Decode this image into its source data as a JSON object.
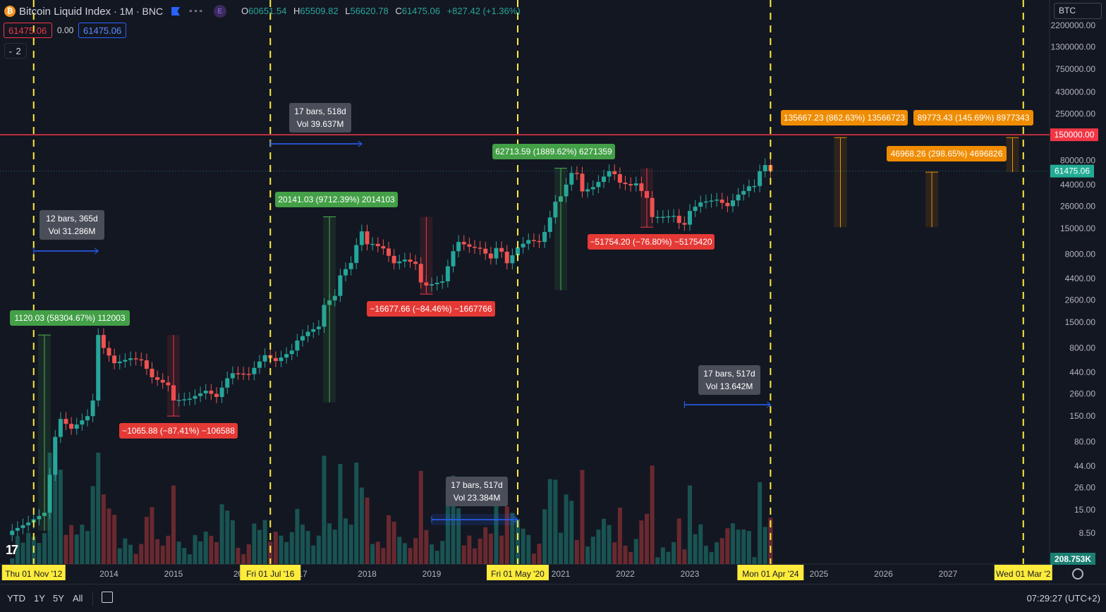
{
  "header": {
    "symbol_title": "Bitcoin Liquid Index",
    "interval_exchange": "· 1M · BNC",
    "more_label": "∘∘∘",
    "badge": "E",
    "ohlc": {
      "o_label": "O",
      "o": "60651.54",
      "h_label": "H",
      "h": "65509.82",
      "l_label": "L",
      "l": "56620.78",
      "c_label": "C",
      "c": "61475.06",
      "change": "+827.42 (+1.36%)"
    },
    "sell_price": "61475.06",
    "spread": "0.00",
    "buy_price": "61475.06",
    "collapse_label": "2"
  },
  "symbol_box": {
    "label": "BTC"
  },
  "colors": {
    "background": "#131722",
    "up": "#26a69a",
    "down": "#ef5350",
    "vline": "#ffeb3b",
    "hline": "#f23645",
    "label_green": "#43a047",
    "label_red": "#e53935",
    "label_orange": "#f08c00",
    "range_blue": "#2962ff"
  },
  "bottom_bar": {
    "ranges": [
      "YTD",
      "1Y",
      "5Y",
      "All"
    ],
    "clock": "07:29:27 (UTC+2)",
    "calendar_icon": "calendar-icon",
    "settings_icon": "gear-icon"
  },
  "chart_data": {
    "type": "candlestick",
    "symbol": "Bitcoin Liquid Index",
    "interval": "1M",
    "y_scale": "log",
    "ylim": [
      6,
      3000000
    ],
    "y_ticks": [
      "2200000.00",
      "1300000.00",
      "750000.00",
      "430000.00",
      "250000.00",
      "80000.00",
      "44000.00",
      "26000.00",
      "15000.00",
      "8000.00",
      "4400.00",
      "2600.00",
      "1500.00",
      "800.00",
      "440.00",
      "260.00",
      "150.00",
      "80.00",
      "44.00",
      "26.00",
      "15.00",
      "8.50"
    ],
    "x_ticks": [
      {
        "label": "2014",
        "x": "2014-01"
      },
      {
        "label": "2015",
        "x": "2015-01"
      },
      {
        "label": "20",
        "x": "2016-01"
      },
      {
        "label": "17",
        "x": "2017-01"
      },
      {
        "label": "2018",
        "x": "2018-01"
      },
      {
        "label": "2019",
        "x": "2019-01"
      },
      {
        "label": "2021",
        "x": "2021-01"
      },
      {
        "label": "2022",
        "x": "2022-01"
      },
      {
        "label": "2023",
        "x": "2023-01"
      },
      {
        "label": "2025",
        "x": "2025-01"
      },
      {
        "label": "2026",
        "x": "2026-01"
      },
      {
        "label": "2027",
        "x": "2027-01"
      }
    ],
    "vertical_markers": [
      {
        "date": "2012-11",
        "label": "Thu 01 Nov '12"
      },
      {
        "date": "2016-07",
        "label": "Fri 01 Jul '16"
      },
      {
        "date": "2020-05",
        "label": "Fri 01 May '20"
      },
      {
        "date": "2024-04",
        "label": "Mon 01 Apr '24"
      },
      {
        "date": "2028-03",
        "label": "Wed 01 Mar '2"
      }
    ],
    "horizontal_line": {
      "value": 150000,
      "label": "150000.00"
    },
    "last_price": {
      "value": 61475.06,
      "label": "61475.06"
    },
    "volume_label": "208.753K",
    "closes": [
      {
        "month": "2012-07",
        "close": 9
      },
      {
        "month": "2012-10",
        "close": 11
      },
      {
        "month": "2013-01",
        "close": 14
      },
      {
        "month": "2013-03",
        "close": 90
      },
      {
        "month": "2013-04",
        "close": 140
      },
      {
        "month": "2013-06",
        "close": 110
      },
      {
        "month": "2013-09",
        "close": 150
      },
      {
        "month": "2013-10",
        "close": 220
      },
      {
        "month": "2013-11",
        "close": 1100
      },
      {
        "month": "2013-12",
        "close": 800
      },
      {
        "month": "2014-02",
        "close": 550
      },
      {
        "month": "2014-05",
        "close": 620
      },
      {
        "month": "2014-07",
        "close": 590
      },
      {
        "month": "2014-09",
        "close": 390
      },
      {
        "month": "2014-12",
        "close": 320
      },
      {
        "month": "2015-01",
        "close": 220
      },
      {
        "month": "2015-04",
        "close": 230
      },
      {
        "month": "2015-07",
        "close": 280
      },
      {
        "month": "2015-09",
        "close": 240
      },
      {
        "month": "2015-11",
        "close": 380
      },
      {
        "month": "2015-12",
        "close": 430
      },
      {
        "month": "2016-03",
        "close": 420
      },
      {
        "month": "2016-06",
        "close": 670
      },
      {
        "month": "2016-08",
        "close": 580
      },
      {
        "month": "2016-11",
        "close": 750
      },
      {
        "month": "2016-12",
        "close": 960
      },
      {
        "month": "2017-02",
        "close": 1190
      },
      {
        "month": "2017-04",
        "close": 1350
      },
      {
        "month": "2017-05",
        "close": 2300
      },
      {
        "month": "2017-07",
        "close": 2870
      },
      {
        "month": "2017-08",
        "close": 4750
      },
      {
        "month": "2017-10",
        "close": 6450
      },
      {
        "month": "2017-11",
        "close": 10000
      },
      {
        "month": "2017-12",
        "close": 14000
      },
      {
        "month": "2018-01",
        "close": 10200
      },
      {
        "month": "2018-02",
        "close": 10300
      },
      {
        "month": "2018-04",
        "close": 9200
      },
      {
        "month": "2018-06",
        "close": 6400
      },
      {
        "month": "2018-08",
        "close": 7000
      },
      {
        "month": "2018-10",
        "close": 6300
      },
      {
        "month": "2018-11",
        "close": 4000
      },
      {
        "month": "2018-12",
        "close": 3700
      },
      {
        "month": "2019-03",
        "close": 4100
      },
      {
        "month": "2019-05",
        "close": 8600
      },
      {
        "month": "2019-06",
        "close": 10800
      },
      {
        "month": "2019-08",
        "close": 9600
      },
      {
        "month": "2019-10",
        "close": 9150
      },
      {
        "month": "2019-12",
        "close": 7200
      },
      {
        "month": "2020-01",
        "close": 9300
      },
      {
        "month": "2020-02",
        "close": 8500
      },
      {
        "month": "2020-03",
        "close": 6400
      },
      {
        "month": "2020-05",
        "close": 9450
      },
      {
        "month": "2020-07",
        "close": 11300
      },
      {
        "month": "2020-09",
        "close": 10800
      },
      {
        "month": "2020-10",
        "close": 13800
      },
      {
        "month": "2020-11",
        "close": 19700
      },
      {
        "month": "2020-12",
        "close": 29000
      },
      {
        "month": "2021-01",
        "close": 33100
      },
      {
        "month": "2021-03",
        "close": 58800
      },
      {
        "month": "2021-04",
        "close": 57700
      },
      {
        "month": "2021-05",
        "close": 37300
      },
      {
        "month": "2021-07",
        "close": 41500
      },
      {
        "month": "2021-08",
        "close": 47100
      },
      {
        "month": "2021-10",
        "close": 61300
      },
      {
        "month": "2021-11",
        "close": 57000
      },
      {
        "month": "2021-12",
        "close": 46300
      },
      {
        "month": "2022-02",
        "close": 43200
      },
      {
        "month": "2022-03",
        "close": 45500
      },
      {
        "month": "2022-04",
        "close": 37700
      },
      {
        "month": "2022-05",
        "close": 31800
      },
      {
        "month": "2022-06",
        "close": 19900
      },
      {
        "month": "2022-08",
        "close": 20000
      },
      {
        "month": "2022-10",
        "close": 20500
      },
      {
        "month": "2022-11",
        "close": 17200
      },
      {
        "month": "2022-12",
        "close": 16500
      },
      {
        "month": "2023-01",
        "close": 23100
      },
      {
        "month": "2023-03",
        "close": 28500
      },
      {
        "month": "2023-06",
        "close": 30500
      },
      {
        "month": "2023-08",
        "close": 26000
      },
      {
        "month": "2023-10",
        "close": 34500
      },
      {
        "month": "2023-11",
        "close": 37700
      },
      {
        "month": "2023-12",
        "close": 42300
      },
      {
        "month": "2024-01",
        "close": 42600
      },
      {
        "month": "2024-02",
        "close": 61200
      },
      {
        "month": "2024-03",
        "close": 71300
      },
      {
        "month": "2024-04",
        "close": 61475.06
      }
    ],
    "measure_labels": [
      {
        "text": "1120.03 (58304.67%) 112003",
        "kind": "up"
      },
      {
        "text": "−1065.88 (−87.41%) −106588",
        "kind": "down"
      },
      {
        "text": "20141.03 (9712.39%) 2014103",
        "kind": "up"
      },
      {
        "text": "−16677.66 (−84.46%) −1667766",
        "kind": "down"
      },
      {
        "text": "62713.59 (1889.62%) 6271359",
        "kind": "up"
      },
      {
        "text": "−51754.20 (−76.80%) −5175420",
        "kind": "down"
      },
      {
        "text": "135667.23 (862.63%) 13566723",
        "kind": "projection"
      },
      {
        "text": "89773.43 (145.69%) 8977343",
        "kind": "projection"
      },
      {
        "text": "46968.26 (298.65%) 4696826",
        "kind": "projection"
      }
    ],
    "date_ranges": [
      {
        "bars": "12 bars, 365d",
        "vol": "Vol 31.286M"
      },
      {
        "bars": "17 bars, 518d",
        "vol": "Vol 39.637M"
      },
      {
        "bars": "17 bars, 517d",
        "vol": "Vol 23.384M"
      },
      {
        "bars": "17 bars, 517d",
        "vol": "Vol 13.642M"
      }
    ]
  }
}
